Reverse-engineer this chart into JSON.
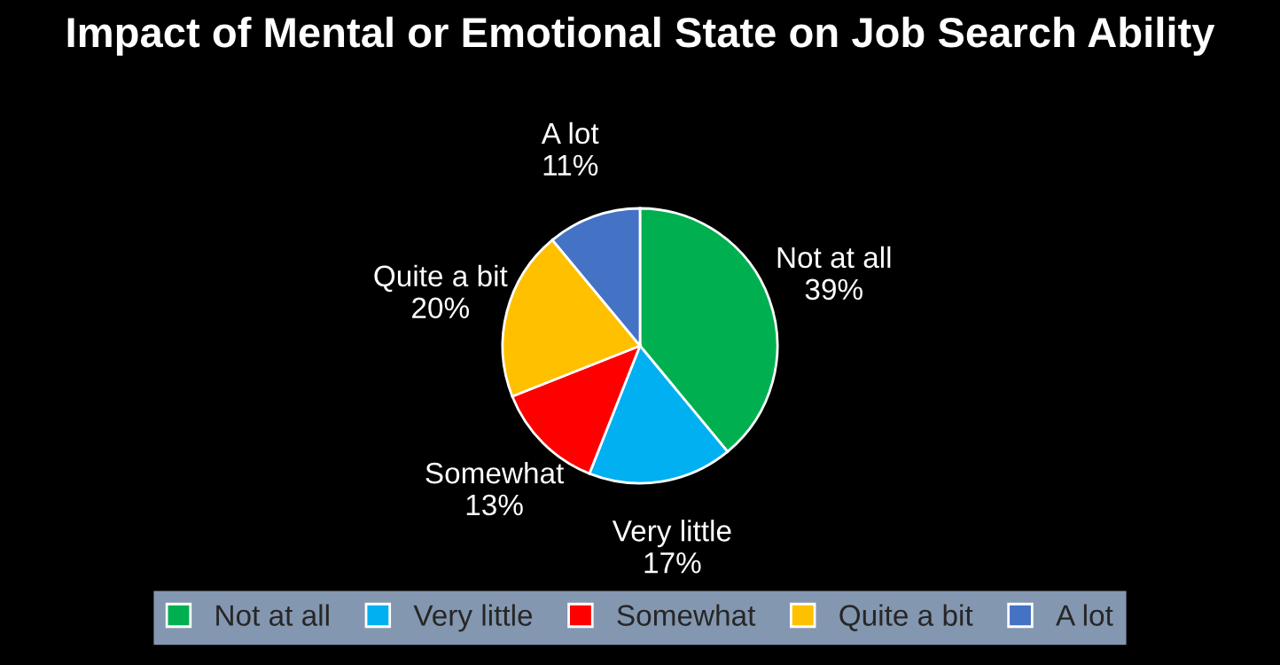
{
  "chart_data": {
    "type": "pie",
    "title": "Impact of Mental or Emotional State on Job Search Ability",
    "categories": [
      "Not at all",
      "Very little",
      "Somewhat",
      "Quite a bit",
      "A lot"
    ],
    "values": [
      39,
      17,
      13,
      20,
      11
    ],
    "value_labels": [
      "39%",
      "17%",
      "13%",
      "20%",
      "11%"
    ],
    "colors": [
      "#00b050",
      "#00b0f0",
      "#ff0000",
      "#ffc000",
      "#4472c4"
    ],
    "legend": "bottom"
  }
}
